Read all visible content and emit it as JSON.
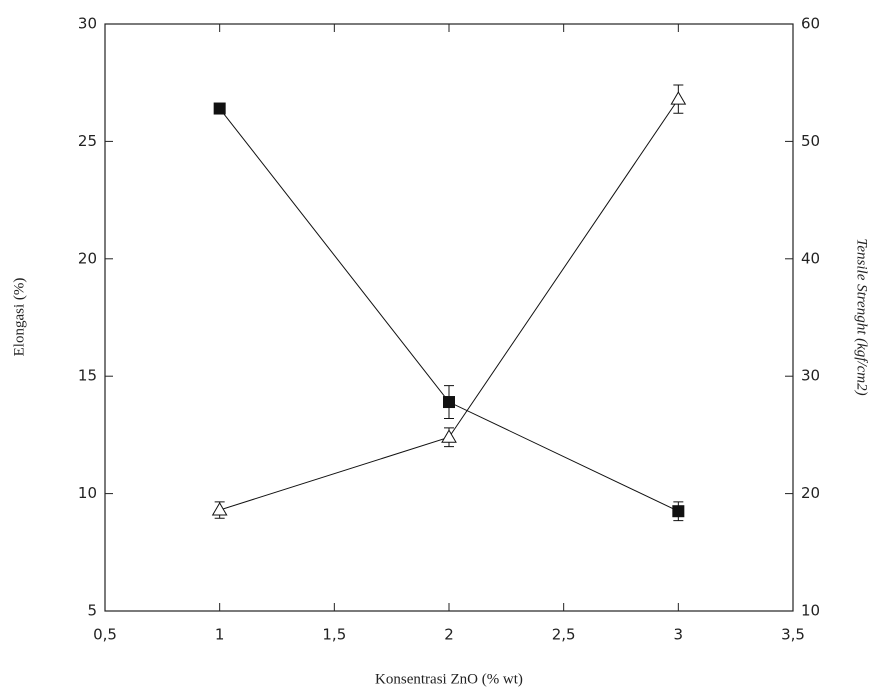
{
  "chart_data": {
    "type": "line",
    "x_label": "Konsentrasi ZnO (% wt)",
    "y_label": "Elongasi (%)",
    "y2_label": "Tensile Strenght (kgf/cm2)",
    "x": [
      1,
      2,
      3
    ],
    "series": [
      {
        "color": "#111111",
        "marker": "square",
        "values": [
          26.4,
          13.9,
          9.25
        ],
        "errors": [
          0.2,
          0.7,
          0.4
        ]
      },
      {
        "color": "#111111",
        "marker": "triangle",
        "axis": "y2",
        "values": [
          18.6,
          24.8,
          53.6
        ],
        "errors": [
          0.7,
          0.8,
          1.2
        ]
      }
    ],
    "xlim": [
      0.5,
      3.5
    ],
    "xticks": [
      {
        "value": 0.5,
        "label": "0,5"
      },
      1,
      {
        "value": 1.5,
        "label": "1,5"
      },
      2,
      {
        "value": 2.5,
        "label": "2,5"
      },
      3,
      {
        "value": 3.5,
        "label": "3,5"
      }
    ],
    "ylim": [
      5,
      30
    ],
    "yticks": [
      5,
      10,
      15,
      20,
      25,
      30
    ],
    "y2lim": [
      10,
      60
    ],
    "y2ticks": [
      10,
      20,
      30,
      40,
      50,
      60
    ]
  }
}
